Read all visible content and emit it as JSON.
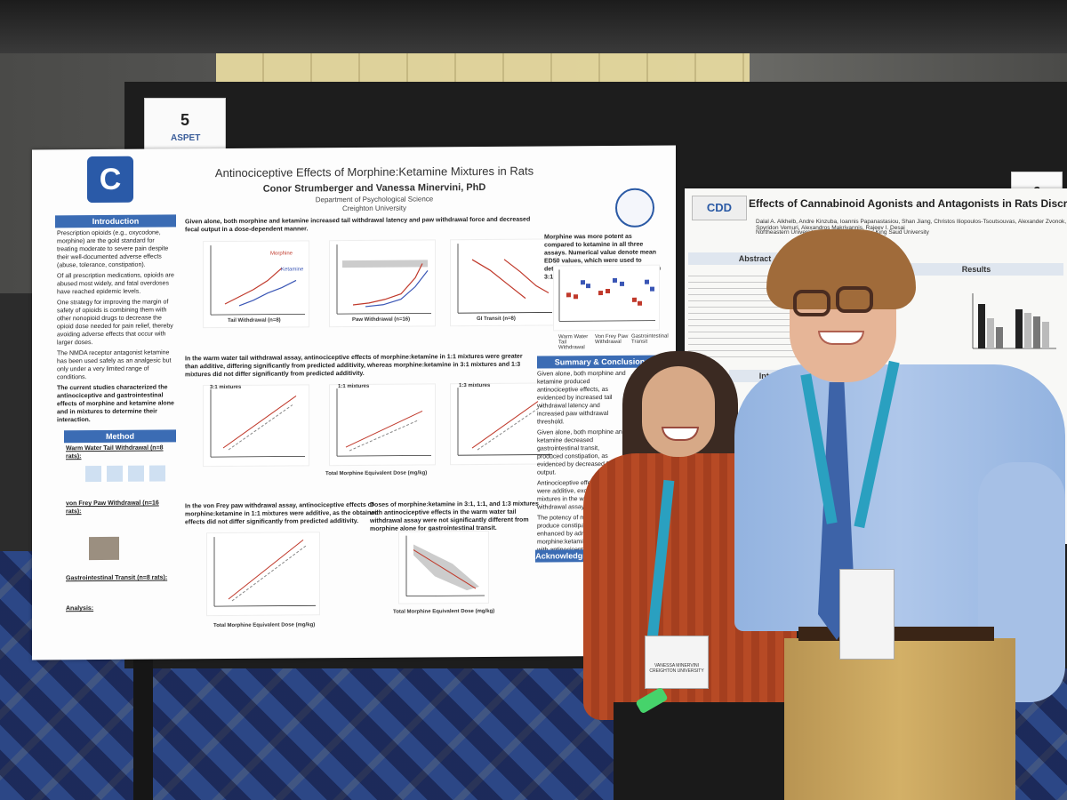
{
  "booth": {
    "number_left": "5",
    "number_right": "6",
    "aspet": "ASPET"
  },
  "poster1": {
    "logo": "C",
    "title": "Antinociceptive Effects of Morphine:Ketamine Mixtures in Rats",
    "authors": "Conor Strumberger and Vanessa Minervini, PhD",
    "department": "Department of Psychological Science",
    "university": "Creighton University",
    "intro_header": "Introduction",
    "intro_text_1": "Prescription opioids (e.g., oxycodone, morphine) are the gold standard for treating moderate to severe pain despite their well-documented adverse effects (abuse, tolerance, constipation).",
    "intro_text_2": "Of all prescription medications, opioids are abused most widely, and fatal overdoses have reached epidemic levels.",
    "intro_text_3": "One strategy for improving the margin of safety of opioids is combining them with other nonopioid drugs to decrease the opioid dose needed for pain relief, thereby avoiding adverse effects that occur with larger doses.",
    "intro_text_4": "The NMDA receptor antagonist ketamine has been used safely as an analgesic but only under a very limited range of conditions.",
    "intro_text_5": "The current studies characterized the antinociceptive and gastrointestinal effects of morphine and ketamine alone and in mixtures to determine their interaction.",
    "method_header": "Method",
    "method_1_title": "Warm Water Tail Withdrawal (n=8 rats):",
    "method_2_title": "von Frey Paw Withdrawal (n=16 rats):",
    "method_3_title": "Gastrointestinal Transit (n=8 rats):",
    "method_4_title": "Analysis:",
    "fig1_caption": "Given alone, both morphine and ketamine increased tail withdrawal latency and paw withdrawal force and decreased fecal output in a dose-dependent manner.",
    "fig1_panels": [
      "Tail Withdrawal (n=8)",
      "Paw Withdrawal (n=16)",
      "GI Transit (n=8)"
    ],
    "fig1_series": [
      "Morphine",
      "Ketamine"
    ],
    "fig2_caption": "Morphine was more potent as compared to ketamine in all three assays. Numerical value denote mean ED50 values, which were used to determine the doses for the mixtures in 3:1, 1:1, or 1:3 ratios.",
    "fig2_xlabels": [
      "Warm Water Tail Withdrawal",
      "Von Frey Paw Withdrawal",
      "Gastrointestinal Transit"
    ],
    "fig3_caption": "In the warm water tail withdrawal assay, antinociceptive effects of morphine:ketamine in 1:1 mixtures were greater than additive, differing significantly from predicted additivity, whereas morphine:ketamine in 3:1 mixtures and 1:3 mixtures did not differ significantly from predicted additivity.",
    "fig3_panels": [
      "3:1 mixtures",
      "1:1 mixtures",
      "1:3 mixtures"
    ],
    "fig3_xlabel": "Total Morphine Equivalent Dose (mg/kg)",
    "fig4_caption": "In the von Frey paw withdrawal assay, antinociceptive effects of morphine:ketamine in 1:1 mixtures were additive, as the obtained effects did not differ significantly from predicted additivity.",
    "fig4_xlabel": "Total Morphine Equivalent Dose (mg/kg)",
    "fig5_caption": "Doses of morphine:ketamine in 3:1, 1:1, and 1:3 mixtures with antinociceptive effects in the warm water tail withdrawal assay were not significantly different from morphine alone for gastrointestinal transit.",
    "fig5_xlabel": "Total Morphine Equivalent Dose (mg/kg)",
    "summary_header": "Summary & Conclusions",
    "summary_text_1": "Given alone, both morphine and ketamine produced antinociceptive effects, as evidenced by increased tail withdrawal latency and increased paw withdrawal threshold.",
    "summary_text_2": "Given alone, both morphine and ketamine decreased gastrointestinal transit, produced constipation, as evidenced by decreased fecal output.",
    "summary_text_3": "Antinociceptive effects generally were additive, except for the 1:1 mixtures in the warm water tail withdrawal assay.",
    "summary_text_4": "The potency of morphine to produce constipation was not enhanced by administration of morphine:ketamine mixtures with antinociceptive effects.",
    "ack_header": "Acknowledgments"
  },
  "poster2": {
    "logo": "CDD",
    "title": "Effects of Cannabinoid Agonists and Antagonists in Rats Discriminati",
    "authors": "Dalal A. Alkhelb, Andre Kinzuba, Ioannis Papanastasiou, Shan Jiang, Christos Iliopoulos-Tsoutsouvas, Alexander Zvonok, Spyridon Vemuri, Alexandros Makriyannis, Rajeev I. Desai",
    "affiliation": "Northeastern University, College of Pharmacy, King Saud University",
    "abstract_header": "Abstract",
    "results_header": "Results",
    "intro_header": "Introduction"
  },
  "badge_woman": {
    "name": "VANESSA MINERVINI",
    "affiliation": "CREIGHTON UNIVERSITY"
  },
  "chart_data": [
    {
      "type": "line",
      "title": "Tail Withdrawal (n=8)",
      "ylabel": "Withdrawal Latency (sec)",
      "x": [
        "Saline",
        "0.56",
        "1",
        "1.78",
        "3.2",
        "5.6",
        "10",
        "17.8",
        "32"
      ],
      "series": [
        {
          "name": "Morphine",
          "values": [
            2,
            3,
            4,
            5,
            6,
            8,
            10,
            null,
            null
          ]
        },
        {
          "name": "Ketamine",
          "values": [
            2,
            2,
            2,
            3,
            3,
            4,
            5,
            6,
            7
          ]
        }
      ]
    }
  ]
}
